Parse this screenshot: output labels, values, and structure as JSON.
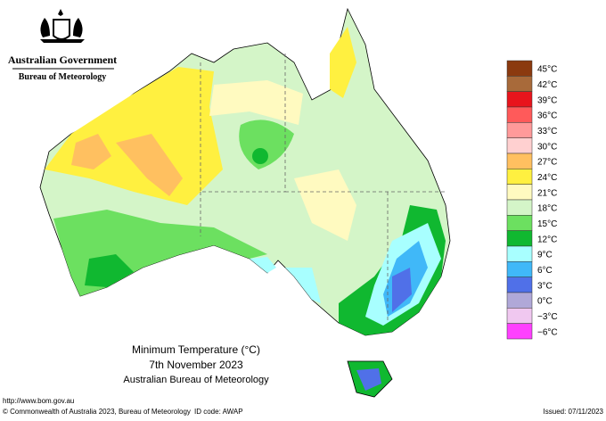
{
  "header": {
    "government": "Australian Government",
    "agency": "Bureau of Meteorology"
  },
  "title": {
    "line1": "Minimum Temperature (°C)",
    "line2": "7th November 2023",
    "line3": "Australian Bureau of Meteorology"
  },
  "legend": {
    "items": [
      {
        "label": "45°C",
        "color": "#8b3a0f"
      },
      {
        "label": "42°C",
        "color": "#a86a3a"
      },
      {
        "label": "39°C",
        "color": "#e8141c"
      },
      {
        "label": "36°C",
        "color": "#ff5a5a"
      },
      {
        "label": "33°C",
        "color": "#ff9a9a"
      },
      {
        "label": "30°C",
        "color": "#ffd0d0"
      },
      {
        "label": "27°C",
        "color": "#ffc060"
      },
      {
        "label": "24°C",
        "color": "#fff040"
      },
      {
        "label": "21°C",
        "color": "#fffac0"
      },
      {
        "label": "18°C",
        "color": "#d4f5c8"
      },
      {
        "label": "15°C",
        "color": "#6ce060"
      },
      {
        "label": "12°C",
        "color": "#10b830"
      },
      {
        "label": "9°C",
        "color": "#a8ffff"
      },
      {
        "label": "6°C",
        "color": "#40b8f8"
      },
      {
        "label": "3°C",
        "color": "#5070e8"
      },
      {
        "label": "0°C",
        "color": "#b0a8d8"
      },
      {
        "label": "−3°C",
        "color": "#f0c8f0"
      },
      {
        "label": "−6°C",
        "color": "#ff40ff"
      }
    ]
  },
  "footer": {
    "url": "http://www.bom.gov.au",
    "copyright": "© Commonwealth of Australia 2023, Bureau of Meteorology",
    "id": "ID code: AWAP",
    "issued": "Issued: 07/11/2023"
  }
}
